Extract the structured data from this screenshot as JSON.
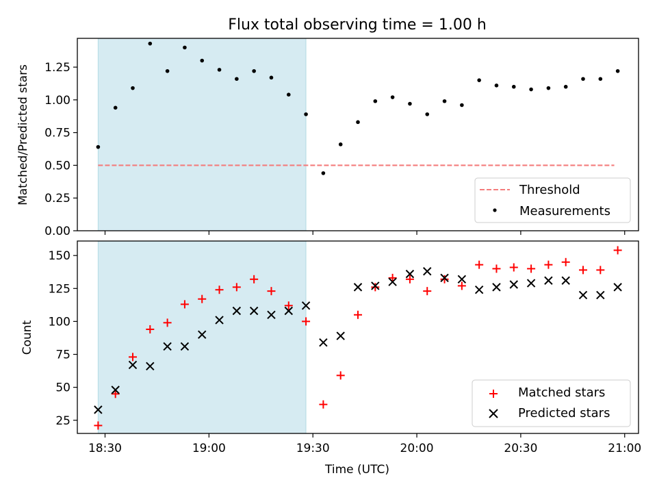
{
  "chart_data": [
    {
      "type": "scatter",
      "title": "Flux total observing time = 1.00 h",
      "xlabel": "",
      "ylabel": "Matched/Predicted stars",
      "xlim": [
        "18:22",
        "21:04"
      ],
      "ylim": [
        0,
        1.47
      ],
      "yticks": [
        0.0,
        0.25,
        0.5,
        0.75,
        1.0,
        1.25
      ],
      "ytick_labels": [
        "0.00",
        "0.25",
        "0.50",
        "0.75",
        "1.00",
        "1.25"
      ],
      "shaded_region": [
        "18:28",
        "19:28"
      ],
      "legend_position": "lower right",
      "series": [
        {
          "name": "Threshold",
          "kind": "dashed-line",
          "color": "#f47c7c",
          "x": [
            "18:28",
            "20:57"
          ],
          "y": [
            0.5,
            0.5
          ]
        },
        {
          "name": "Measurements",
          "kind": "dot",
          "color": "#000000",
          "x": [
            "18:28",
            "18:33",
            "18:38",
            "18:43",
            "18:48",
            "18:53",
            "18:58",
            "19:03",
            "19:08",
            "19:13",
            "19:18",
            "19:23",
            "19:28",
            "19:33",
            "19:38",
            "19:43",
            "19:48",
            "19:53",
            "19:58",
            "20:03",
            "20:08",
            "20:13",
            "20:18",
            "20:23",
            "20:28",
            "20:33",
            "20:38",
            "20:43",
            "20:48",
            "20:53",
            "20:58"
          ],
          "y": [
            0.64,
            0.94,
            1.09,
            1.43,
            1.22,
            1.4,
            1.3,
            1.23,
            1.16,
            1.22,
            1.17,
            1.04,
            0.89,
            0.44,
            0.66,
            0.83,
            0.99,
            1.02,
            0.97,
            0.89,
            0.99,
            0.96,
            1.15,
            1.11,
            1.1,
            1.08,
            1.09,
            1.1,
            1.16,
            1.16,
            1.22
          ]
        }
      ]
    },
    {
      "type": "scatter",
      "title": "",
      "xlabel": "Time (UTC)",
      "ylabel": "Count",
      "xlim": [
        "18:22",
        "21:04"
      ],
      "ylim": [
        15,
        161
      ],
      "yticks": [
        25,
        50,
        75,
        100,
        125,
        150
      ],
      "ytick_labels": [
        "25",
        "50",
        "75",
        "100",
        "125",
        "150"
      ],
      "xticks": [
        "18:30",
        "19:00",
        "19:30",
        "20:00",
        "20:30",
        "21:00"
      ],
      "xtick_labels": [
        "18:30",
        "19:00",
        "19:30",
        "20:00",
        "20:30",
        "21:00"
      ],
      "shaded_region": [
        "18:28",
        "19:28"
      ],
      "legend_position": "lower right",
      "series": [
        {
          "name": "Matched stars",
          "marker": "+",
          "color": "#ff0000",
          "x": [
            "18:28",
            "18:33",
            "18:38",
            "18:43",
            "18:48",
            "18:53",
            "18:58",
            "19:03",
            "19:08",
            "19:13",
            "19:18",
            "19:23",
            "19:28",
            "19:33",
            "19:38",
            "19:43",
            "19:48",
            "19:53",
            "19:58",
            "20:03",
            "20:08",
            "20:13",
            "20:18",
            "20:23",
            "20:28",
            "20:33",
            "20:38",
            "20:43",
            "20:48",
            "20:53",
            "20:58"
          ],
          "y": [
            21,
            45,
            73,
            94,
            99,
            113,
            117,
            124,
            126,
            132,
            123,
            112,
            100,
            37,
            59,
            105,
            126,
            133,
            132,
            123,
            132,
            127,
            143,
            140,
            141,
            140,
            143,
            145,
            139,
            139,
            154
          ]
        },
        {
          "name": "Predicted stars",
          "marker": "x",
          "color": "#000000",
          "x": [
            "18:28",
            "18:33",
            "18:38",
            "18:43",
            "18:48",
            "18:53",
            "18:58",
            "19:03",
            "19:08",
            "19:13",
            "19:18",
            "19:23",
            "19:28",
            "19:33",
            "19:38",
            "19:43",
            "19:48",
            "19:53",
            "19:58",
            "20:03",
            "20:08",
            "20:13",
            "20:18",
            "20:23",
            "20:28",
            "20:33",
            "20:38",
            "20:43",
            "20:48",
            "20:53",
            "20:58"
          ],
          "y": [
            33,
            48,
            67,
            66,
            81,
            81,
            90,
            101,
            108,
            108,
            105,
            108,
            112,
            84,
            89,
            126,
            127,
            130,
            136,
            138,
            133,
            132,
            124,
            126,
            128,
            129,
            131,
            131,
            120,
            120,
            126
          ]
        }
      ]
    }
  ]
}
